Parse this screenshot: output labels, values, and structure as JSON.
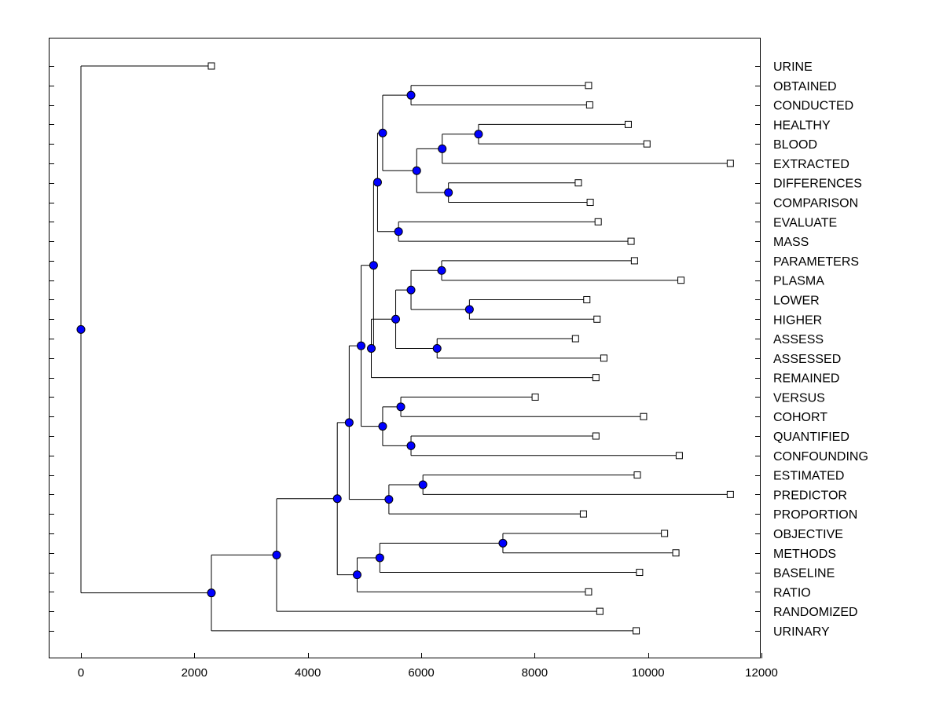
{
  "chart_data": {
    "type": "dendrogram",
    "title": "",
    "xlabel": "",
    "ylabel": "",
    "xlim": [
      -600,
      12000
    ],
    "x_ticks": [
      0,
      2000,
      4000,
      6000,
      8000,
      10000,
      12000
    ],
    "x_tick_labels": [
      "0",
      "2000",
      "4000",
      "6000",
      "8000",
      "10000",
      "12000"
    ],
    "grid": false,
    "node_color": "#0000ff",
    "leaves": [
      {
        "label": "URINE",
        "x": 2300
      },
      {
        "label": "OBTAINED",
        "x": 8950
      },
      {
        "label": "CONDUCTED",
        "x": 8970
      },
      {
        "label": "HEALTHY",
        "x": 9650
      },
      {
        "label": "BLOOD",
        "x": 9980
      },
      {
        "label": "EXTRACTED",
        "x": 11450
      },
      {
        "label": "DIFFERENCES",
        "x": 8770
      },
      {
        "label": "COMPARISON",
        "x": 8980
      },
      {
        "label": "EVALUATE",
        "x": 9120
      },
      {
        "label": "MASS",
        "x": 9700
      },
      {
        "label": "PARAMETERS",
        "x": 9760
      },
      {
        "label": "PLASMA",
        "x": 10580
      },
      {
        "label": "LOWER",
        "x": 8920
      },
      {
        "label": "HIGHER",
        "x": 9100
      },
      {
        "label": "ASSESS",
        "x": 8720
      },
      {
        "label": "ASSESSED",
        "x": 9220
      },
      {
        "label": "REMAINED",
        "x": 9080
      },
      {
        "label": "VERSUS",
        "x": 8010
      },
      {
        "label": "COHORT",
        "x": 9920
      },
      {
        "label": "QUANTIFIED",
        "x": 9080
      },
      {
        "label": "CONFOUNDING",
        "x": 10550
      },
      {
        "label": "ESTIMATED",
        "x": 9810
      },
      {
        "label": "PREDICTOR",
        "x": 11450
      },
      {
        "label": "PROPORTION",
        "x": 8860
      },
      {
        "label": "OBJECTIVE",
        "x": 10290
      },
      {
        "label": "METHODS",
        "x": 10490
      },
      {
        "label": "BASELINE",
        "x": 9850
      },
      {
        "label": "RATIO",
        "x": 8950
      },
      {
        "label": "RANDOMIZED",
        "x": 9150
      },
      {
        "label": "URINARY",
        "x": 9790
      }
    ],
    "merges": [
      {
        "id": "n_obt_con",
        "x": 5820,
        "children": [
          "L1",
          "L2"
        ]
      },
      {
        "id": "n_hea_blo",
        "x": 7010,
        "children": [
          "L3",
          "L4"
        ]
      },
      {
        "id": "n_hb_ext",
        "x": 6370,
        "children": [
          "n_hea_blo",
          "L5"
        ]
      },
      {
        "id": "n_dif_com",
        "x": 6480,
        "children": [
          "L6",
          "L7"
        ]
      },
      {
        "id": "n_hbe_dc",
        "x": 5920,
        "children": [
          "n_hb_ext",
          "n_dif_com"
        ]
      },
      {
        "id": "n_top1",
        "x": 5320,
        "children": [
          "n_obt_con",
          "n_hbe_dc"
        ]
      },
      {
        "id": "n_eva_mas",
        "x": 5600,
        "children": [
          "L8",
          "L9"
        ]
      },
      {
        "id": "n_top2",
        "x": 5230,
        "children": [
          "n_top1",
          "n_eva_mas"
        ]
      },
      {
        "id": "n_par_pla",
        "x": 6360,
        "children": [
          "L10",
          "L11"
        ]
      },
      {
        "id": "n_low_hig",
        "x": 6850,
        "children": [
          "L12",
          "L13"
        ]
      },
      {
        "id": "n_pp_lh",
        "x": 5820,
        "children": [
          "n_par_pla",
          "n_low_hig"
        ]
      },
      {
        "id": "n_ass_asd",
        "x": 6280,
        "children": [
          "L14",
          "L15"
        ]
      },
      {
        "id": "n_mid",
        "x": 5550,
        "children": [
          "n_pp_lh",
          "n_ass_asd"
        ]
      },
      {
        "id": "n_mid_rem",
        "x": 5120,
        "children": [
          "n_mid",
          "L16"
        ]
      },
      {
        "id": "n_top3",
        "x": 5160,
        "children": [
          "n_top2",
          "n_mid_rem"
        ]
      },
      {
        "id": "n_ver_coh",
        "x": 5640,
        "children": [
          "L17",
          "L18"
        ]
      },
      {
        "id": "n_qua_con",
        "x": 5820,
        "children": [
          "L19",
          "L20"
        ]
      },
      {
        "id": "n_vc_qc",
        "x": 5320,
        "children": [
          "n_ver_coh",
          "n_qua_con"
        ]
      },
      {
        "id": "n_top4",
        "x": 4940,
        "children": [
          "n_top3",
          "n_vc_qc"
        ]
      },
      {
        "id": "n_est_pre",
        "x": 6030,
        "children": [
          "L21",
          "L22"
        ]
      },
      {
        "id": "n_ep_pro",
        "x": 5430,
        "children": [
          "n_est_pre",
          "L23"
        ]
      },
      {
        "id": "n_top5",
        "x": 4730,
        "children": [
          "n_top4",
          "n_ep_pro"
        ]
      },
      {
        "id": "n_obj_met",
        "x": 7440,
        "children": [
          "L24",
          "L25"
        ]
      },
      {
        "id": "n_om_bas",
        "x": 5270,
        "children": [
          "n_obj_met",
          "L26"
        ]
      },
      {
        "id": "n_omb_rat",
        "x": 4870,
        "children": [
          "n_om_bas",
          "L27"
        ]
      },
      {
        "id": "n_top6",
        "x": 4520,
        "children": [
          "n_top5",
          "n_omb_rat"
        ]
      },
      {
        "id": "n_top7",
        "x": 3450,
        "children": [
          "n_top6",
          "L28"
        ]
      },
      {
        "id": "n_top8",
        "x": 2300,
        "children": [
          "n_top7",
          "L29"
        ]
      },
      {
        "id": "n_root",
        "x": 0,
        "children": [
          "L0",
          "n_top8"
        ]
      }
    ]
  }
}
